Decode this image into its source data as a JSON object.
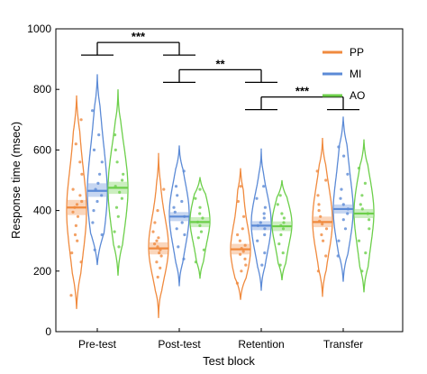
{
  "chart_data": {
    "type": "violin",
    "xlabel": "Test block",
    "ylabel": "Response time (msec)",
    "ylim": [
      0,
      1000
    ],
    "yticks": [
      0,
      200,
      400,
      600,
      800,
      1000
    ],
    "categories": [
      "Pre-test",
      "Post-test",
      "Retention",
      "Transfer"
    ],
    "legend_position": "top-right",
    "series": [
      {
        "name": "PP",
        "color": "#f08a3e",
        "medians": [
          410,
          275,
          272,
          362
        ],
        "ci": [
          [
            385,
            435
          ],
          [
            255,
            295
          ],
          [
            255,
            290
          ],
          [
            345,
            380
          ]
        ],
        "range": [
          [
            75,
            780
          ],
          [
            45,
            590
          ],
          [
            105,
            540
          ],
          [
            115,
            640
          ]
        ],
        "points": [
          [
            120,
            230,
            260,
            300,
            320,
            350,
            380,
            395,
            410,
            420,
            430,
            450,
            470,
            520,
            560,
            620,
            700
          ],
          [
            180,
            210,
            230,
            250,
            260,
            270,
            280,
            290,
            300,
            310,
            330,
            360,
            400,
            470
          ],
          [
            160,
            200,
            220,
            240,
            255,
            265,
            275,
            285,
            300,
            320,
            340,
            380,
            430,
            480
          ],
          [
            200,
            250,
            300,
            320,
            340,
            355,
            365,
            380,
            400,
            420,
            450,
            500,
            530
          ]
        ]
      },
      {
        "name": "MI",
        "color": "#5b8ad6",
        "medians": [
          465,
          380,
          350,
          405
        ],
        "ci": [
          [
            445,
            490
          ],
          [
            365,
            395
          ],
          [
            335,
            365
          ],
          [
            390,
            420
          ]
        ],
        "range": [
          [
            220,
            850
          ],
          [
            150,
            615
          ],
          [
            135,
            605
          ],
          [
            165,
            710
          ]
        ],
        "points": [
          [
            270,
            320,
            360,
            400,
            430,
            450,
            470,
            490,
            520,
            560,
            600,
            650,
            730
          ],
          [
            240,
            280,
            320,
            340,
            360,
            380,
            395,
            410,
            430,
            450,
            480,
            530
          ],
          [
            220,
            260,
            300,
            320,
            340,
            350,
            360,
            375,
            390,
            410,
            440,
            480
          ],
          [
            250,
            300,
            340,
            370,
            390,
            405,
            420,
            440,
            470,
            520,
            580,
            610
          ]
        ]
      },
      {
        "name": "AO",
        "color": "#6ccf4a",
        "medians": [
          475,
          362,
          348,
          390
        ],
        "ci": [
          [
            455,
            495
          ],
          [
            345,
            378
          ],
          [
            332,
            364
          ],
          [
            375,
            405
          ]
        ],
        "range": [
          [
            185,
            800
          ],
          [
            175,
            510
          ],
          [
            170,
            500
          ],
          [
            130,
            635
          ]
        ],
        "points": [
          [
            280,
            330,
            380,
            410,
            440,
            460,
            480,
            500,
            520,
            560,
            600,
            650
          ],
          [
            230,
            270,
            310,
            330,
            350,
            362,
            375,
            390,
            410,
            440,
            470
          ],
          [
            220,
            260,
            290,
            320,
            340,
            350,
            360,
            375,
            390,
            420,
            450
          ],
          [
            200,
            260,
            300,
            340,
            370,
            390,
            405,
            420,
            450,
            490,
            540
          ]
        ]
      }
    ],
    "significance": [
      {
        "from": 0,
        "to": 1,
        "label": "***",
        "level": 955
      },
      {
        "from": 1,
        "to": 2,
        "label": "**",
        "level": 865
      },
      {
        "from": 2,
        "to": 3,
        "label": "***",
        "level": 775
      }
    ]
  }
}
